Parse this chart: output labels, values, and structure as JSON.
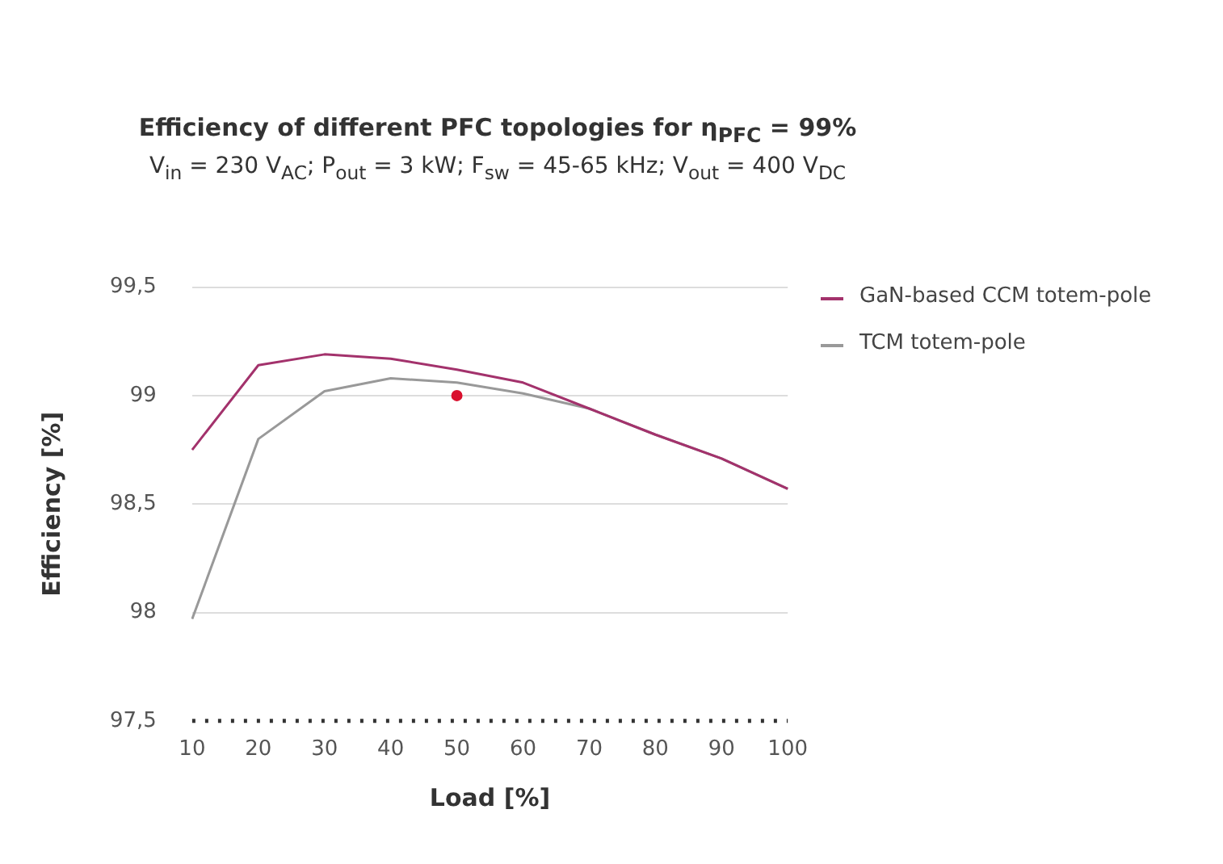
{
  "chart_data": {
    "type": "line",
    "title": "Efficiency of different PFC topologies for η$_{PFC}$ = 99%",
    "subtitle": "V$_{in}$ = 230 V$_{AC}$; P$_{out}$ = 3 kW; F$_{sw}$ = 45-65 kHz; V$_{out}$ = 400 V$_{DC}$",
    "xlabel": "Load [%]",
    "ylabel": "Efficiency [%]",
    "categories": [
      "10",
      "20",
      "30",
      "40",
      "50",
      "60",
      "70",
      "80",
      "90",
      "100"
    ],
    "series": [
      {
        "name": "GaN-based CCM totem-pole",
        "color": "#a3326c",
        "values": [
          98.75,
          99.14,
          99.19,
          99.17,
          99.12,
          99.06,
          98.94,
          98.82,
          98.71,
          98.57
        ]
      },
      {
        "name": "TCM totem-pole",
        "color": "#999999",
        "values": [
          97.97,
          98.8,
          99.02,
          99.08,
          99.06,
          99.01,
          98.94,
          98.82,
          98.71,
          98.57
        ]
      },
      {
        "type": "scatter",
        "color": "#d9102e",
        "marker": "circle",
        "x": [
          "50"
        ],
        "values": [
          99.0
        ]
      }
    ],
    "ylim": [
      97.5,
      99.5
    ],
    "yticks": [
      {
        "value": 97.5,
        "label": "97,5"
      },
      {
        "value": 98,
        "label": "98"
      },
      {
        "value": 98.5,
        "label": "98,5"
      },
      {
        "value": 99,
        "label": "99"
      },
      {
        "value": 99.5,
        "label": "99,5"
      }
    ],
    "grid": "y",
    "legend": "right",
    "line_style": "solid"
  }
}
